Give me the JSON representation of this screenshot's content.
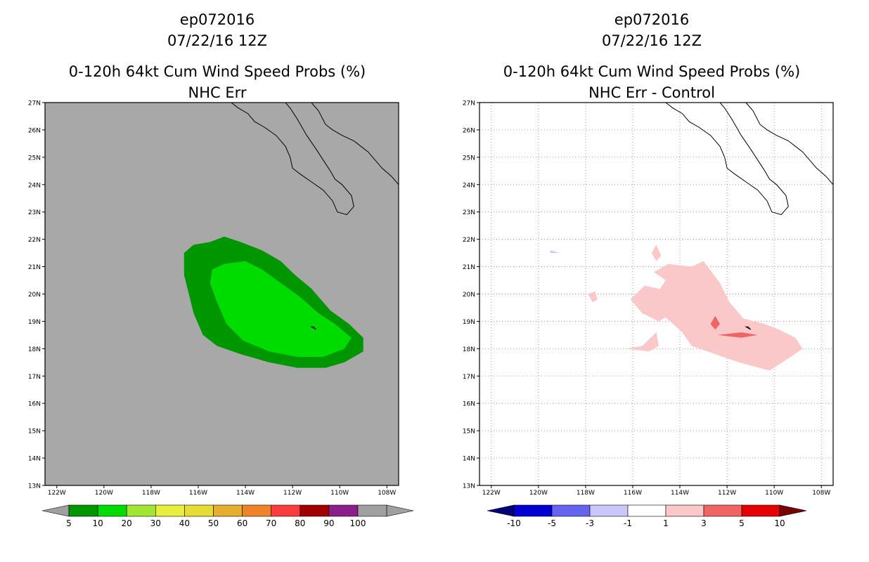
{
  "chart_data": [
    {
      "type": "contour-map",
      "title_lines": [
        "ep072016",
        "07/22/16 12Z",
        "0-120h 64kt Cum Wind Speed Probs (%)",
        "NHC Err"
      ],
      "lon_range": [
        -122.5,
        -107.5
      ],
      "lat_range": [
        13,
        27
      ],
      "x_ticks": [
        "122W",
        "120W",
        "118W",
        "116W",
        "114W",
        "112W",
        "110W",
        "108W"
      ],
      "y_ticks": [
        "13N",
        "14N",
        "15N",
        "16N",
        "17N",
        "18N",
        "19N",
        "20N",
        "21N",
        "22N",
        "23N",
        "24N",
        "25N",
        "26N",
        "27N"
      ],
      "gridlines": false,
      "colorbar": {
        "labels": [
          "5",
          "10",
          "20",
          "30",
          "40",
          "50",
          "60",
          "70",
          "80",
          "90",
          "100"
        ],
        "colors": [
          "#009600",
          "#00dc00",
          "#a0e632",
          "#e6f03c",
          "#e6dc32",
          "#e6af2d",
          "#f08228",
          "#fa3c3c",
          "#a00000",
          "#8c1e8c",
          "#a0a0a0"
        ],
        "under_color": "#a0a0a0",
        "over_color": "#a0a0a0"
      },
      "background_color": "#a8a8a8",
      "contours": [
        {
          "level": "5-10 %",
          "color": "#009600",
          "polygon": [
            [
              -116.6,
              21.5
            ],
            [
              -116.2,
              21.8
            ],
            [
              -115.5,
              21.9
            ],
            [
              -114.9,
              22.1
            ],
            [
              -114.2,
              21.9
            ],
            [
              -113.3,
              21.6
            ],
            [
              -112.5,
              21.2
            ],
            [
              -111.9,
              20.7
            ],
            [
              -111.2,
              20.2
            ],
            [
              -110.4,
              19.4
            ],
            [
              -109.6,
              18.9
            ],
            [
              -109.0,
              18.4
            ],
            [
              -109.0,
              17.9
            ],
            [
              -109.8,
              17.5
            ],
            [
              -110.6,
              17.3
            ],
            [
              -111.8,
              17.3
            ],
            [
              -113.0,
              17.5
            ],
            [
              -114.2,
              17.8
            ],
            [
              -115.2,
              18.1
            ],
            [
              -115.8,
              18.5
            ],
            [
              -116.2,
              19.3
            ],
            [
              -116.4,
              20.0
            ],
            [
              -116.6,
              20.7
            ]
          ]
        },
        {
          "level": "10-20 %",
          "color": "#00dc00",
          "polygon": [
            [
              -115.4,
              20.9
            ],
            [
              -114.9,
              21.1
            ],
            [
              -114.0,
              21.2
            ],
            [
              -113.3,
              20.9
            ],
            [
              -112.5,
              20.4
            ],
            [
              -111.7,
              19.9
            ],
            [
              -110.9,
              19.3
            ],
            [
              -110.2,
              18.9
            ],
            [
              -109.5,
              18.4
            ],
            [
              -109.8,
              18.0
            ],
            [
              -110.7,
              17.7
            ],
            [
              -111.8,
              17.7
            ],
            [
              -113.0,
              17.9
            ],
            [
              -114.1,
              18.3
            ],
            [
              -114.8,
              18.9
            ],
            [
              -115.2,
              19.7
            ],
            [
              -115.5,
              20.4
            ]
          ]
        }
      ],
      "coastline": "Baja California peninsula and mainland Mexico"
    },
    {
      "type": "contour-map",
      "title_lines": [
        "ep072016",
        "07/22/16 12Z",
        "0-120h 64kt Cum Wind Speed Probs (%)",
        "NHC Err - Control"
      ],
      "lon_range": [
        -122.5,
        -107.5
      ],
      "lat_range": [
        13,
        27
      ],
      "x_ticks": [
        "122W",
        "120W",
        "118W",
        "116W",
        "114W",
        "112W",
        "110W",
        "108W"
      ],
      "y_ticks": [
        "13N",
        "14N",
        "15N",
        "16N",
        "17N",
        "18N",
        "19N",
        "20N",
        "21N",
        "22N",
        "23N",
        "24N",
        "25N",
        "26N",
        "27N"
      ],
      "gridlines": true,
      "colorbar": {
        "labels": [
          "-10",
          "-5",
          "-3",
          "-1",
          "1",
          "3",
          "5",
          "10"
        ],
        "colors": [
          "#0000d2",
          "#6464f0",
          "#c8c8fa",
          "#ffffff",
          "#fac8c8",
          "#f06464",
          "#e60000"
        ],
        "under_color": "#000078",
        "over_color": "#780000"
      },
      "background_color": "#ffffff",
      "contours": [
        {
          "level": "1-3",
          "color": "#fac8c8",
          "polygon": [
            [
              -115.1,
              20.8
            ],
            [
              -114.5,
              21.1
            ],
            [
              -113.5,
              21.0
            ],
            [
              -113.0,
              21.2
            ],
            [
              -112.3,
              20.4
            ],
            [
              -111.9,
              19.7
            ],
            [
              -111.3,
              19.1
            ],
            [
              -110.4,
              18.9
            ],
            [
              -109.8,
              18.7
            ],
            [
              -109.1,
              18.4
            ],
            [
              -108.8,
              18.0
            ],
            [
              -109.3,
              17.7
            ],
            [
              -110.2,
              17.2
            ],
            [
              -111.5,
              17.5
            ],
            [
              -112.5,
              17.8
            ],
            [
              -113.5,
              18.1
            ],
            [
              -113.9,
              18.6
            ],
            [
              -114.8,
              19.3
            ],
            [
              -115.0,
              20.0
            ],
            [
              -114.6,
              20.5
            ]
          ]
        },
        {
          "level": "1-3",
          "color": "#fac8c8",
          "polygon": [
            [
              -116.1,
              19.8
            ],
            [
              -115.5,
              20.3
            ],
            [
              -114.9,
              20.2
            ],
            [
              -114.3,
              19.3
            ],
            [
              -114.9,
              19.0
            ],
            [
              -115.6,
              19.3
            ]
          ]
        },
        {
          "level": "1-3",
          "color": "#fac8c8",
          "polygon": [
            [
              -115.2,
              21.5
            ],
            [
              -115.0,
              21.8
            ],
            [
              -114.8,
              21.4
            ],
            [
              -115.0,
              21.2
            ]
          ]
        },
        {
          "level": "1-3",
          "color": "#fac8c8",
          "polygon": [
            [
              -117.9,
              20.0
            ],
            [
              -117.6,
              20.1
            ],
            [
              -117.5,
              19.8
            ],
            [
              -117.7,
              19.7
            ]
          ]
        },
        {
          "level": "1-3",
          "color": "#fac8c8",
          "polygon": [
            [
              -116.3,
              18.0
            ],
            [
              -115.6,
              18.1
            ],
            [
              -115.0,
              18.6
            ],
            [
              -114.9,
              18.1
            ],
            [
              -115.3,
              17.9
            ]
          ]
        },
        {
          "level": "3-5",
          "color": "#f06464",
          "polygon": [
            [
              -112.5,
              19.2
            ],
            [
              -112.3,
              18.9
            ],
            [
              -112.5,
              18.7
            ],
            [
              -112.7,
              18.9
            ]
          ]
        },
        {
          "level": "3-5",
          "color": "#f06464",
          "polygon": [
            [
              -112.4,
              18.5
            ],
            [
              -111.4,
              18.6
            ],
            [
              -110.7,
              18.5
            ],
            [
              -111.4,
              18.4
            ]
          ]
        },
        {
          "level": "-3 to -1",
          "color": "#c8c8fa",
          "polygon": [
            [
              -119.5,
              21.5
            ],
            [
              -119.1,
              21.5
            ],
            [
              -119.5,
              21.6
            ]
          ]
        }
      ],
      "coastline": "Baja California peninsula and mainland Mexico"
    }
  ]
}
